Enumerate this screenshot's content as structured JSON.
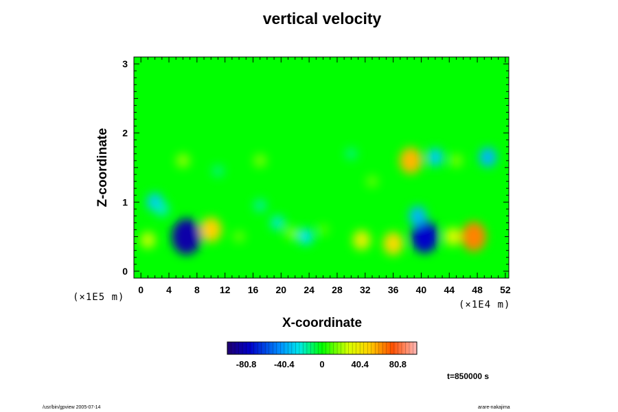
{
  "chart_data": {
    "type": "heatmap",
    "title": "vertical velocity",
    "xlabel": "X-coordinate",
    "ylabel": "Z-coordinate",
    "x_unit": "(×1E4 m)",
    "y_unit": "(×1E5 m)",
    "xlim": [
      -1,
      52.5
    ],
    "ylim": [
      -0.1,
      3.1
    ],
    "x_ticks": [
      "0",
      "4",
      "8",
      "12",
      "16",
      "20",
      "24",
      "28",
      "32",
      "36",
      "40",
      "44",
      "48",
      "52"
    ],
    "y_ticks": [
      "0",
      "1",
      "2",
      "3"
    ],
    "colorbar": {
      "range": [
        -101,
        101
      ],
      "tick_labels": [
        "-80.8",
        "-40.4",
        "0",
        "40.4",
        "80.8"
      ],
      "tick_values": [
        -80.8,
        -40.4,
        0,
        40.4,
        80.8
      ]
    },
    "features": [
      {
        "x": 6.5,
        "z": 0.5,
        "value": -85
      },
      {
        "x": 40.5,
        "z": 0.5,
        "value": -75
      },
      {
        "x": 39.5,
        "z": 0.8,
        "value": -35
      },
      {
        "x": 47.5,
        "z": 0.5,
        "value": 65
      },
      {
        "x": 10,
        "z": 0.6,
        "value": 50
      },
      {
        "x": 36,
        "z": 0.4,
        "value": 45
      },
      {
        "x": 38.5,
        "z": 1.6,
        "value": 55
      },
      {
        "x": 31.5,
        "z": 0.45,
        "value": 35
      },
      {
        "x": 44.5,
        "z": 0.5,
        "value": 30
      },
      {
        "x": 1,
        "z": 0.45,
        "value": 25
      },
      {
        "x": 21.5,
        "z": 0.55,
        "value": 15
      },
      {
        "x": 23.5,
        "z": 0.5,
        "value": -25
      },
      {
        "x": 2,
        "z": 1.0,
        "value": -30
      },
      {
        "x": 3,
        "z": 0.9,
        "value": -20
      },
      {
        "x": 19.5,
        "z": 0.7,
        "value": -20
      },
      {
        "x": 42,
        "z": 1.65,
        "value": -30
      },
      {
        "x": 49.5,
        "z": 1.65,
        "value": -35
      },
      {
        "x": 17,
        "z": 0.95,
        "value": -15
      },
      {
        "x": 14,
        "z": 0.5,
        "value": 12
      },
      {
        "x": 26,
        "z": 0.6,
        "value": 10
      },
      {
        "x": 6,
        "z": 1.6,
        "value": 18
      },
      {
        "x": 17,
        "z": 1.6,
        "value": 15
      },
      {
        "x": 33,
        "z": 1.3,
        "value": 12
      },
      {
        "x": 45,
        "z": 1.6,
        "value": 15
      },
      {
        "x": 11,
        "z": 1.45,
        "value": -12
      },
      {
        "x": 30,
        "z": 1.7,
        "value": -12
      }
    ],
    "time_label": "t=850000 s"
  },
  "footer": {
    "left": "/usr/bin/gpview 2005-07-14",
    "right": "arare-nakajima"
  }
}
